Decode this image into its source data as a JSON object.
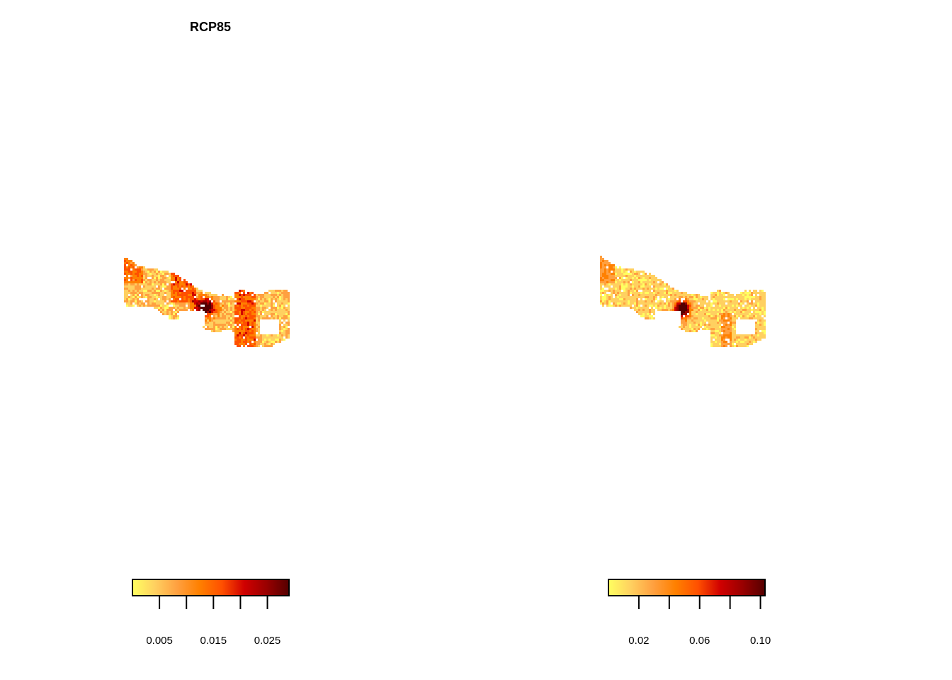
{
  "panels": [
    {
      "title": "RCP85",
      "legend": {
        "ticks": [
          0.005,
          0.01,
          0.015,
          0.02,
          0.025
        ],
        "tick_labels": [
          "0.005",
          "",
          "0.015",
          "",
          "0.025"
        ],
        "range": [
          0.0,
          0.029
        ]
      }
    },
    {
      "title": "",
      "legend": {
        "ticks": [
          0.02,
          0.04,
          0.06,
          0.08,
          0.1
        ],
        "tick_labels": [
          "0.02",
          "",
          "0.06",
          "",
          "0.10"
        ],
        "range": [
          0.0,
          0.103
        ]
      }
    }
  ],
  "palette": [
    "#ffff60",
    "#ffd060",
    "#ffa040",
    "#ff8000",
    "#ff5000",
    "#d00000",
    "#990000",
    "#550000"
  ]
}
